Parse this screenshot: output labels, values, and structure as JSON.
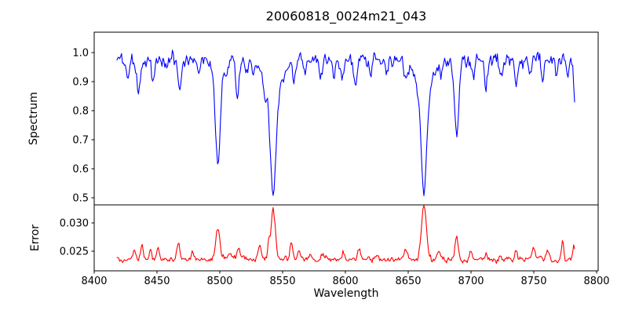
{
  "chart_data": {
    "type": "line",
    "title": "20060818_0024m21_043",
    "xlabel": "Wavelength",
    "grid": false,
    "legend": "none",
    "xlim": [
      8400,
      8801.25
    ],
    "x_ticks": [
      8400,
      8450,
      8500,
      8550,
      8600,
      8650,
      8700,
      8750,
      8800
    ],
    "x_tick_labels": [
      "8400",
      "8450",
      "8500",
      "8550",
      "8600",
      "8650",
      "8700",
      "8750",
      "8800"
    ],
    "data_x_start": 8418,
    "data_x_end": 8782.5,
    "data_x_step": 0.75,
    "panels": [
      {
        "name": "spectrum",
        "ylabel": "Spectrum",
        "color": "#0000ff",
        "ylim": [
          0.4757,
          1.0703
        ],
        "y_ticks": [
          0.5,
          0.6,
          0.7,
          0.8,
          0.9,
          1.0
        ],
        "y_tick_labels": [
          "0.5",
          "0.6",
          "0.7",
          "0.8",
          "0.9",
          "1.0"
        ],
        "continuum": 0.975,
        "noise_std": 0.015,
        "noise_seed": 20060818,
        "absorption_lines": [
          {
            "center": 8427,
            "depth": 0.065,
            "sigma": 1.0
          },
          {
            "center": 8435,
            "depth": 0.12,
            "sigma": 1.3
          },
          {
            "center": 8447,
            "depth": 0.055,
            "sigma": 1.0
          },
          {
            "center": 8457,
            "depth": 0.04,
            "sigma": 1.0
          },
          {
            "center": 8468,
            "depth": 0.11,
            "sigma": 1.3
          },
          {
            "center": 8483,
            "depth": 0.045,
            "sigma": 1.0
          },
          {
            "center": 8498.5,
            "depth": 0.3,
            "sigma": 1.9
          },
          {
            "center": 8498.5,
            "depth": 0.055,
            "sigma": 5.0
          },
          {
            "center": 8505,
            "depth": 0.04,
            "sigma": 1.0
          },
          {
            "center": 8514,
            "depth": 0.13,
            "sigma": 1.3
          },
          {
            "center": 8521,
            "depth": 0.04,
            "sigma": 1.0
          },
          {
            "center": 8527,
            "depth": 0.05,
            "sigma": 1.0
          },
          {
            "center": 8536,
            "depth": 0.06,
            "sigma": 1.0
          },
          {
            "center": 8542.5,
            "depth": 0.36,
            "sigma": 2.1
          },
          {
            "center": 8542.5,
            "depth": 0.11,
            "sigma": 7.0
          },
          {
            "center": 8559,
            "depth": 0.07,
            "sigma": 1.1
          },
          {
            "center": 8568,
            "depth": 0.04,
            "sigma": 1.0
          },
          {
            "center": 8580,
            "depth": 0.05,
            "sigma": 1.0
          },
          {
            "center": 8591,
            "depth": 0.06,
            "sigma": 1.1
          },
          {
            "center": 8598,
            "depth": 0.07,
            "sigma": 1.1
          },
          {
            "center": 8608,
            "depth": 0.09,
            "sigma": 1.1
          },
          {
            "center": 8620,
            "depth": 0.05,
            "sigma": 1.0
          },
          {
            "center": 8633,
            "depth": 0.04,
            "sigma": 1.0
          },
          {
            "center": 8648,
            "depth": 0.055,
            "sigma": 1.2
          },
          {
            "center": 8662.5,
            "depth": 0.35,
            "sigma": 2.1
          },
          {
            "center": 8662.5,
            "depth": 0.11,
            "sigma": 7.0
          },
          {
            "center": 8676,
            "depth": 0.04,
            "sigma": 1.0
          },
          {
            "center": 8688.5,
            "depth": 0.26,
            "sigma": 1.7
          },
          {
            "center": 8702,
            "depth": 0.05,
            "sigma": 1.0
          },
          {
            "center": 8712,
            "depth": 0.1,
            "sigma": 1.2
          },
          {
            "center": 8724,
            "depth": 0.05,
            "sigma": 1.0
          },
          {
            "center": 8736,
            "depth": 0.1,
            "sigma": 1.2
          },
          {
            "center": 8747,
            "depth": 0.06,
            "sigma": 1.0
          },
          {
            "center": 8757,
            "depth": 0.08,
            "sigma": 1.1
          },
          {
            "center": 8768,
            "depth": 0.05,
            "sigma": 1.0
          },
          {
            "center": 8777,
            "depth": 0.055,
            "sigma": 1.0
          },
          {
            "center": 8782.5,
            "depth": 0.13,
            "sigma": 0.8
          }
        ]
      },
      {
        "name": "error",
        "ylabel": "Error",
        "color": "#ff0000",
        "ylim": [
          0.02153,
          0.03319
        ],
        "y_ticks": [
          0.025,
          0.03
        ],
        "y_tick_labels": [
          "0.025",
          "0.030"
        ],
        "baseline": 0.0235,
        "noise_std": 0.00032,
        "noise_seed": 24,
        "peaks": [
          {
            "center": 8432,
            "height": 0.0018,
            "sigma": 1.2
          },
          {
            "center": 8438,
            "height": 0.0026,
            "sigma": 1.0
          },
          {
            "center": 8445,
            "height": 0.0014,
            "sigma": 1.0
          },
          {
            "center": 8451,
            "height": 0.0022,
            "sigma": 1.0
          },
          {
            "center": 8467,
            "height": 0.0028,
            "sigma": 1.2
          },
          {
            "center": 8478,
            "height": 0.0012,
            "sigma": 1.0
          },
          {
            "center": 8498.5,
            "height": 0.0056,
            "sigma": 1.6
          },
          {
            "center": 8508,
            "height": 0.0014,
            "sigma": 1.2
          },
          {
            "center": 8515,
            "height": 0.0022,
            "sigma": 1.2
          },
          {
            "center": 8532,
            "height": 0.0024,
            "sigma": 1.2
          },
          {
            "center": 8539,
            "height": 0.0028,
            "sigma": 0.9
          },
          {
            "center": 8542.5,
            "height": 0.009,
            "sigma": 1.7
          },
          {
            "center": 8557,
            "height": 0.0028,
            "sigma": 1.1
          },
          {
            "center": 8563,
            "height": 0.0018,
            "sigma": 1.0
          },
          {
            "center": 8572,
            "height": 0.001,
            "sigma": 1.0
          },
          {
            "center": 8582,
            "height": 0.0012,
            "sigma": 1.0
          },
          {
            "center": 8598,
            "height": 0.0012,
            "sigma": 1.0
          },
          {
            "center": 8611,
            "height": 0.0018,
            "sigma": 1.0
          },
          {
            "center": 8625,
            "height": 0.001,
            "sigma": 1.0
          },
          {
            "center": 8648,
            "height": 0.0018,
            "sigma": 1.8
          },
          {
            "center": 8662.5,
            "height": 0.0095,
            "sigma": 1.9
          },
          {
            "center": 8674,
            "height": 0.0014,
            "sigma": 1.2
          },
          {
            "center": 8688.5,
            "height": 0.0042,
            "sigma": 1.4
          },
          {
            "center": 8700,
            "height": 0.0014,
            "sigma": 1.0
          },
          {
            "center": 8712,
            "height": 0.0012,
            "sigma": 1.0
          },
          {
            "center": 8724,
            "height": 0.001,
            "sigma": 1.0
          },
          {
            "center": 8736,
            "height": 0.0016,
            "sigma": 1.0
          },
          {
            "center": 8750,
            "height": 0.002,
            "sigma": 1.3
          },
          {
            "center": 8761,
            "height": 0.0018,
            "sigma": 1.0
          },
          {
            "center": 8773,
            "height": 0.0034,
            "sigma": 0.9
          },
          {
            "center": 8782,
            "height": 0.0028,
            "sigma": 0.8
          }
        ]
      }
    ]
  }
}
